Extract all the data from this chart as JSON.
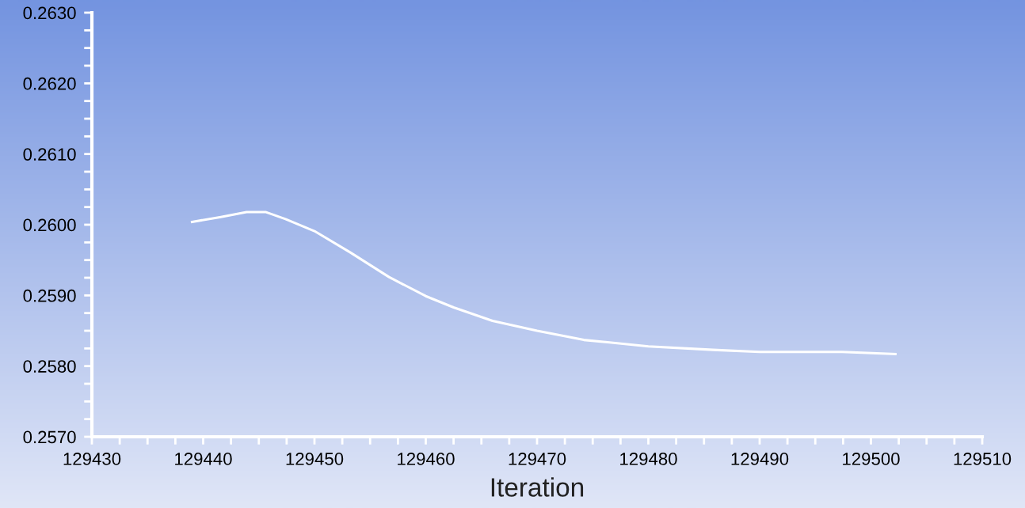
{
  "chart_data": {
    "type": "line",
    "xlabel": "Iteration",
    "x": [
      129439,
      129441.6,
      129443.9,
      129445.6,
      129447.4,
      129450,
      129453.2,
      129456.7,
      129460,
      129462.5,
      129466,
      129470,
      129474.2,
      129480,
      129485.8,
      129490,
      129497.4,
      129502.2
    ],
    "series": [
      {
        "color": "#ffffff",
        "values": [
          0.26004,
          0.26011,
          0.26018,
          0.26018,
          0.26008,
          0.25991,
          0.25961,
          0.25926,
          0.25899,
          0.25883,
          0.25864,
          0.2585,
          0.25837,
          0.25828,
          0.25823,
          0.2582,
          0.2582,
          0.25817
        ]
      }
    ],
    "xlim": [
      129430,
      129510
    ],
    "xticks": [
      129430,
      {
        "value": 129432.5,
        "label": null
      },
      {
        "value": 129435,
        "label": null
      },
      {
        "value": 129437.5,
        "label": null
      },
      129440,
      {
        "value": 129442.5,
        "label": null
      },
      {
        "value": 129445,
        "label": null
      },
      {
        "value": 129447.5,
        "label": null
      },
      129450,
      {
        "value": 129452.5,
        "label": null
      },
      {
        "value": 129455,
        "label": null
      },
      {
        "value": 129457.5,
        "label": null
      },
      129460,
      {
        "value": 129462.5,
        "label": null
      },
      {
        "value": 129465,
        "label": null
      },
      {
        "value": 129467.5,
        "label": null
      },
      129470,
      {
        "value": 129472.5,
        "label": null
      },
      {
        "value": 129475,
        "label": null
      },
      {
        "value": 129477.5,
        "label": null
      },
      129480,
      {
        "value": 129482.5,
        "label": null
      },
      {
        "value": 129485,
        "label": null
      },
      {
        "value": 129487.5,
        "label": null
      },
      129490,
      {
        "value": 129492.5,
        "label": null
      },
      {
        "value": 129495,
        "label": null
      },
      {
        "value": 129497.5,
        "label": null
      },
      129500,
      {
        "value": 129502.5,
        "label": null
      },
      {
        "value": 129505,
        "label": null
      },
      {
        "value": 129507.5,
        "label": null
      },
      129510
    ],
    "ylim": [
      0.257,
      0.263
    ],
    "yticks": [
      {
        "value": 0.257,
        "label": "0.2570"
      },
      {
        "value": 0.25725,
        "label": null
      },
      {
        "value": 0.2575,
        "label": null
      },
      {
        "value": 0.25775,
        "label": null
      },
      {
        "value": 0.258,
        "label": "0.2580"
      },
      {
        "value": 0.25825,
        "label": null
      },
      {
        "value": 0.2585,
        "label": null
      },
      {
        "value": 0.25875,
        "label": null
      },
      {
        "value": 0.259,
        "label": "0.2590"
      },
      {
        "value": 0.25925,
        "label": null
      },
      {
        "value": 0.2595,
        "label": null
      },
      {
        "value": 0.25975,
        "label": null
      },
      {
        "value": 0.26,
        "label": "0.2600"
      },
      {
        "value": 0.26025,
        "label": null
      },
      {
        "value": 0.2605,
        "label": null
      },
      {
        "value": 0.26075,
        "label": null
      },
      {
        "value": 0.261,
        "label": "0.2610"
      },
      {
        "value": 0.26125,
        "label": null
      },
      {
        "value": 0.2615,
        "label": null
      },
      {
        "value": 0.26175,
        "label": null
      },
      {
        "value": 0.262,
        "label": "0.2620"
      },
      {
        "value": 0.26225,
        "label": null
      },
      {
        "value": 0.2625,
        "label": null
      },
      {
        "value": 0.26275,
        "label": null
      },
      {
        "value": 0.263,
        "label": "0.2630"
      }
    ],
    "grid": false,
    "legend": false,
    "marker": "none",
    "line_style": "solid"
  }
}
